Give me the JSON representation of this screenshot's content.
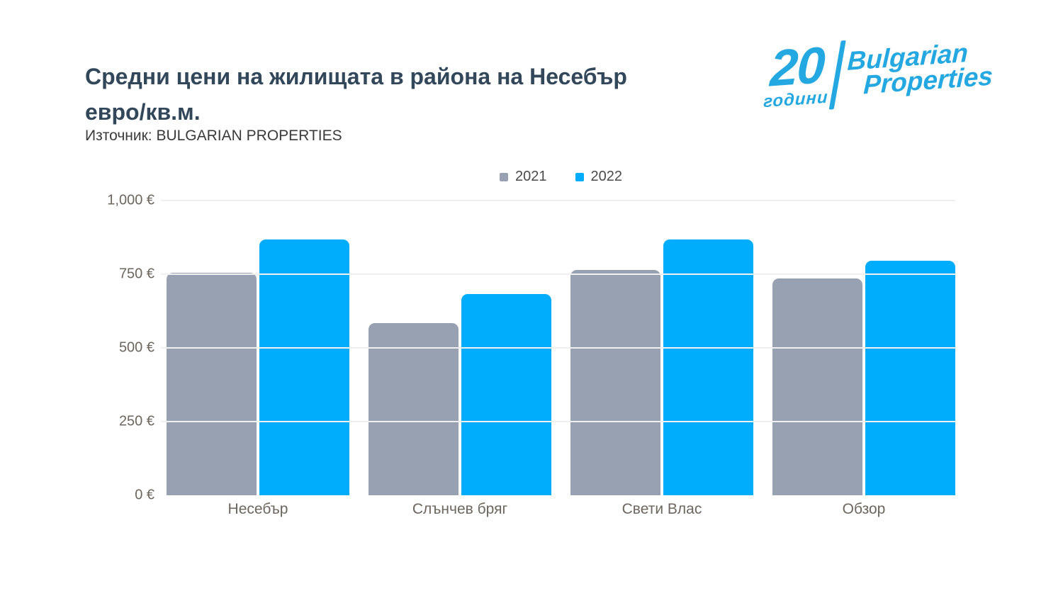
{
  "header": {
    "title_line1": "Средни цени на жилищата в района на Несебър",
    "title_line2": "евро/кв.м.",
    "source": "Източник: BULGARIAN PROPERTIES"
  },
  "logo": {
    "years_number": "20",
    "years_word": "години",
    "brand_line1": "Bulgarian",
    "brand_line2": "Properties",
    "color": "#23A8E1"
  },
  "legend": [
    {
      "label": "2021",
      "color": "#98A1B2"
    },
    {
      "label": "2022",
      "color": "#00ACFC"
    }
  ],
  "chart_data": {
    "type": "bar",
    "title": "Средни цени на жилищата в района на Несебър евро/кв.м.",
    "source": "Източник: BULGARIAN PROPERTIES",
    "categories": [
      "Несебър",
      "Слънчев бряг",
      "Свети Влас",
      "Обзор"
    ],
    "series": [
      {
        "name": "2021",
        "color": "#98A1B2",
        "values": [
          755,
          583,
          765,
          735
        ]
      },
      {
        "name": "2022",
        "color": "#00ACFC",
        "values": [
          868,
          683,
          868,
          795
        ]
      }
    ],
    "ylabel": "евро/кв.м.",
    "ylim": [
      0,
      1000
    ],
    "yticks": [
      {
        "value": 1000,
        "label": "1,000 €"
      },
      {
        "value": 750,
        "label": "750 €"
      },
      {
        "value": 500,
        "label": "500 €"
      },
      {
        "value": 250,
        "label": "250 €"
      },
      {
        "value": 0,
        "label": "0 €"
      }
    ],
    "grid": true,
    "legend_position": "top-center"
  }
}
